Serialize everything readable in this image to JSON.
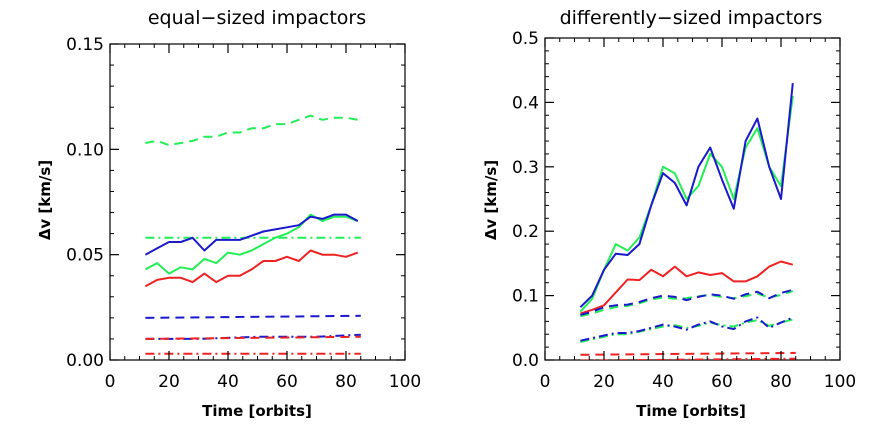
{
  "chart_data": [
    {
      "type": "line",
      "title": "equal−sized impactors",
      "xlabel": "Time [orbits]",
      "ylabel": "Δv [km/s]",
      "xlim": [
        0,
        100
      ],
      "ylim": [
        0,
        0.15
      ],
      "xticks": [
        "0",
        "20",
        "40",
        "60",
        "80",
        "100"
      ],
      "yticks": [
        "0.00",
        "0.05",
        "0.10",
        "0.15"
      ],
      "series": [
        {
          "color": "#22ee55",
          "dash": "dashed",
          "x": [
            12,
            16,
            20,
            24,
            28,
            32,
            36,
            40,
            44,
            48,
            52,
            56,
            60,
            64,
            68,
            72,
            76,
            80,
            84
          ],
          "values": [
            0.103,
            0.104,
            0.102,
            0.103,
            0.104,
            0.106,
            0.106,
            0.108,
            0.108,
            0.11,
            0.11,
            0.112,
            0.112,
            0.114,
            0.116,
            0.114,
            0.115,
            0.115,
            0.114
          ]
        },
        {
          "color": "#22ee55",
          "dash": "dashdot",
          "x": [
            12,
            85
          ],
          "values": [
            0.058,
            0.058
          ]
        },
        {
          "color": "#22ee55",
          "dash": "solid",
          "x": [
            12,
            16,
            20,
            24,
            28,
            32,
            36,
            40,
            44,
            48,
            52,
            56,
            60,
            64,
            68,
            72,
            76,
            80,
            84
          ],
          "values": [
            0.043,
            0.046,
            0.041,
            0.044,
            0.043,
            0.048,
            0.046,
            0.051,
            0.05,
            0.052,
            0.055,
            0.058,
            0.06,
            0.063,
            0.069,
            0.066,
            0.068,
            0.068,
            0.066
          ]
        },
        {
          "color": "#1a1acc",
          "dash": "solid",
          "x": [
            12,
            16,
            20,
            24,
            28,
            32,
            36,
            40,
            44,
            48,
            52,
            56,
            60,
            64,
            68,
            72,
            76,
            80,
            84
          ],
          "values": [
            0.05,
            0.053,
            0.056,
            0.056,
            0.058,
            0.052,
            0.057,
            0.057,
            0.057,
            0.059,
            0.061,
            0.062,
            0.063,
            0.064,
            0.068,
            0.067,
            0.069,
            0.069,
            0.066
          ]
        },
        {
          "color": "#ee2222",
          "dash": "solid",
          "x": [
            12,
            16,
            20,
            24,
            28,
            32,
            36,
            40,
            44,
            48,
            52,
            56,
            60,
            64,
            68,
            72,
            76,
            80,
            84
          ],
          "values": [
            0.035,
            0.038,
            0.039,
            0.039,
            0.037,
            0.041,
            0.037,
            0.04,
            0.04,
            0.043,
            0.047,
            0.047,
            0.049,
            0.047,
            0.052,
            0.05,
            0.05,
            0.049,
            0.051
          ]
        },
        {
          "color": "#1a1acc",
          "dash": "dashed",
          "x": [
            12,
            85
          ],
          "values": [
            0.02,
            0.021
          ]
        },
        {
          "color": "#1a1acc",
          "dash": "dashdot",
          "x": [
            12,
            30,
            50,
            70,
            85
          ],
          "values": [
            0.01,
            0.01,
            0.011,
            0.011,
            0.012
          ]
        },
        {
          "color": "#ee2222",
          "dash": "dashed",
          "x": [
            12,
            85
          ],
          "values": [
            0.01,
            0.011
          ]
        },
        {
          "color": "#ee2222",
          "dash": "dashdot",
          "x": [
            12,
            85
          ],
          "values": [
            0.003,
            0.003
          ]
        }
      ]
    },
    {
      "type": "line",
      "title": "differently−sized impactors",
      "xlabel": "Time [orbits]",
      "ylabel": "Δv [km/s]",
      "xlim": [
        0,
        100
      ],
      "ylim": [
        0,
        0.5
      ],
      "xticks": [
        "0",
        "20",
        "40",
        "60",
        "80",
        "100"
      ],
      "yticks": [
        "0.0",
        "0.1",
        "0.2",
        "0.3",
        "0.4",
        "0.5"
      ],
      "series": [
        {
          "color": "#22ee55",
          "dash": "solid",
          "x": [
            12,
            16,
            20,
            24,
            28,
            32,
            36,
            40,
            44,
            48,
            52,
            56,
            60,
            64,
            68,
            72,
            76,
            80,
            84
          ],
          "values": [
            0.075,
            0.095,
            0.14,
            0.18,
            0.17,
            0.19,
            0.24,
            0.3,
            0.29,
            0.25,
            0.27,
            0.32,
            0.3,
            0.25,
            0.33,
            0.36,
            0.3,
            0.27,
            0.41
          ]
        },
        {
          "color": "#1a1acc",
          "dash": "solid",
          "x": [
            12,
            16,
            20,
            24,
            28,
            32,
            36,
            40,
            44,
            48,
            52,
            56,
            60,
            64,
            68,
            72,
            76,
            80,
            84
          ],
          "values": [
            0.082,
            0.1,
            0.14,
            0.165,
            0.163,
            0.18,
            0.24,
            0.29,
            0.275,
            0.24,
            0.3,
            0.33,
            0.28,
            0.235,
            0.34,
            0.375,
            0.3,
            0.25,
            0.43
          ]
        },
        {
          "color": "#ee2222",
          "dash": "solid",
          "x": [
            12,
            16,
            20,
            24,
            28,
            32,
            36,
            40,
            44,
            48,
            52,
            56,
            60,
            64,
            68,
            72,
            76,
            80,
            84
          ],
          "values": [
            0.072,
            0.078,
            0.085,
            0.105,
            0.125,
            0.124,
            0.14,
            0.13,
            0.145,
            0.13,
            0.136,
            0.132,
            0.135,
            0.122,
            0.122,
            0.13,
            0.145,
            0.153,
            0.148
          ]
        },
        {
          "color": "#22ee55",
          "dash": "dashed",
          "x": [
            12,
            16,
            20,
            24,
            28,
            32,
            36,
            40,
            44,
            48,
            52,
            56,
            60,
            64,
            68,
            72,
            76,
            80,
            84
          ],
          "values": [
            0.068,
            0.072,
            0.078,
            0.082,
            0.084,
            0.088,
            0.094,
            0.097,
            0.095,
            0.096,
            0.099,
            0.101,
            0.098,
            0.096,
            0.099,
            0.103,
            0.097,
            0.101,
            0.107
          ]
        },
        {
          "color": "#1a1acc",
          "dash": "dashed",
          "x": [
            12,
            16,
            20,
            24,
            28,
            32,
            36,
            40,
            44,
            48,
            52,
            56,
            60,
            64,
            68,
            72,
            76,
            80,
            84
          ],
          "values": [
            0.07,
            0.075,
            0.082,
            0.085,
            0.086,
            0.09,
            0.096,
            0.1,
            0.098,
            0.093,
            0.098,
            0.102,
            0.1,
            0.095,
            0.102,
            0.106,
            0.096,
            0.104,
            0.109
          ]
        },
        {
          "color": "#22ee55",
          "dash": "dashdot",
          "x": [
            12,
            16,
            20,
            24,
            28,
            32,
            36,
            40,
            44,
            48,
            52,
            56,
            60,
            64,
            68,
            72,
            76,
            80,
            84
          ],
          "values": [
            0.028,
            0.032,
            0.036,
            0.04,
            0.04,
            0.044,
            0.048,
            0.052,
            0.054,
            0.05,
            0.053,
            0.058,
            0.054,
            0.052,
            0.058,
            0.062,
            0.053,
            0.058,
            0.063
          ]
        },
        {
          "color": "#1a1acc",
          "dash": "dashdot",
          "x": [
            12,
            16,
            20,
            24,
            28,
            32,
            36,
            40,
            44,
            48,
            52,
            56,
            60,
            64,
            68,
            72,
            76,
            80,
            84
          ],
          "values": [
            0.03,
            0.034,
            0.038,
            0.042,
            0.042,
            0.045,
            0.05,
            0.055,
            0.052,
            0.047,
            0.055,
            0.06,
            0.052,
            0.048,
            0.06,
            0.066,
            0.05,
            0.058,
            0.066
          ]
        },
        {
          "color": "#ee2222",
          "dash": "dashed",
          "x": [
            12,
            85
          ],
          "values": [
            0.008,
            0.011
          ]
        },
        {
          "color": "#ee2222",
          "dash": "dashdot",
          "x": [
            12,
            85
          ],
          "values": [
            -0.001,
            0.002
          ]
        }
      ]
    }
  ]
}
